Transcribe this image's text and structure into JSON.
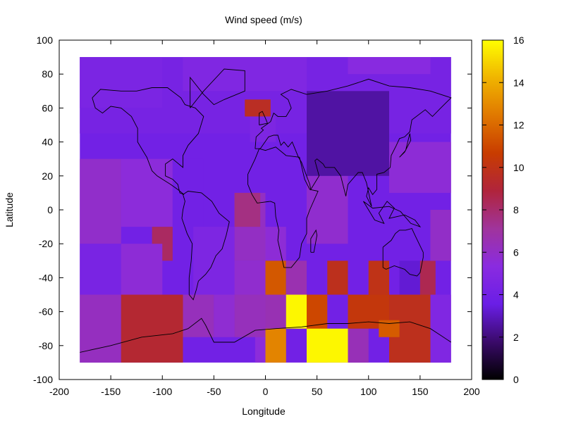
{
  "chart_data": {
    "type": "heatmap",
    "title": "Wind speed (m/s)",
    "xlabel": "Longitude",
    "ylabel": "Latitude",
    "xlim": [
      -200,
      200
    ],
    "ylim": [
      -100,
      100
    ],
    "xticks": [
      -200,
      -150,
      -100,
      -50,
      0,
      50,
      100,
      150,
      200
    ],
    "yticks": [
      -100,
      -80,
      -60,
      -40,
      -20,
      0,
      20,
      40,
      60,
      80,
      100
    ],
    "grid": false,
    "data_extent": {
      "lon": [
        -180,
        180
      ],
      "lat": [
        -90,
        90
      ]
    },
    "colorbar": {
      "min": 0,
      "max": 16,
      "ticks": [
        0,
        2,
        4,
        6,
        8,
        10,
        12,
        14,
        16
      ],
      "colormap": [
        "#000000",
        "#3a0a6a",
        "#6a1ee6",
        "#8a2be0",
        "#a0349c",
        "#b0243c",
        "#c83c00",
        "#e07800",
        "#f0b400",
        "#ffff00"
      ]
    },
    "background_value": 4,
    "regions": [
      {
        "lon": [
          -180,
          180
        ],
        "lat": [
          45,
          90
        ],
        "value": 4.3
      },
      {
        "lon": [
          -180,
          -100
        ],
        "lat": [
          60,
          90
        ],
        "value": 4.5
      },
      {
        "lon": [
          -180,
          -140
        ],
        "lat": [
          -20,
          30
        ],
        "value": 5.9
      },
      {
        "lon": [
          -140,
          -90
        ],
        "lat": [
          -10,
          30
        ],
        "value": 5.5
      },
      {
        "lon": [
          -90,
          -60
        ],
        "lat": [
          -10,
          30
        ],
        "value": 4.0
      },
      {
        "lon": [
          -110,
          -90
        ],
        "lat": [
          -30,
          -10
        ],
        "value": 8.2
      },
      {
        "lon": [
          -180,
          -140
        ],
        "lat": [
          -50,
          -20
        ],
        "value": 4.4
      },
      {
        "lon": [
          -140,
          -100
        ],
        "lat": [
          -50,
          -20
        ],
        "value": 5.6
      },
      {
        "lon": [
          -70,
          -30
        ],
        "lat": [
          -50,
          -10
        ],
        "value": 4.6
      },
      {
        "lon": [
          -30,
          0
        ],
        "lat": [
          -30,
          10
        ],
        "value": 6.1
      },
      {
        "lon": [
          -30,
          -5
        ],
        "lat": [
          -10,
          10
        ],
        "value": 7.6
      },
      {
        "lon": [
          -10,
          0
        ],
        "lat": [
          -90,
          -30
        ],
        "value": 5.5
      },
      {
        "lon": [
          -30,
          0
        ],
        "lat": [
          -60,
          -30
        ],
        "value": 5.8
      },
      {
        "lon": [
          -180,
          -140
        ],
        "lat": [
          -90,
          -50
        ],
        "value": 6.2
      },
      {
        "lon": [
          -140,
          -80
        ],
        "lat": [
          -90,
          -50
        ],
        "value": 9.2
      },
      {
        "lon": [
          -80,
          -50
        ],
        "lat": [
          -75,
          -50
        ],
        "value": 6.3
      },
      {
        "lon": [
          -50,
          -30
        ],
        "lat": [
          -75,
          -50
        ],
        "value": 5.7
      },
      {
        "lon": [
          -30,
          0
        ],
        "lat": [
          -75,
          -50
        ],
        "value": 6.3
      },
      {
        "lon": [
          -20,
          5
        ],
        "lat": [
          55,
          65
        ],
        "value": 9.6
      },
      {
        "lon": [
          -15,
          10
        ],
        "lat": [
          40,
          55
        ],
        "value": 4.6
      },
      {
        "lon": [
          0,
          20
        ],
        "lat": [
          -30,
          -10
        ],
        "value": 5.6
      },
      {
        "lon": [
          0,
          20
        ],
        "lat": [
          -90,
          -50
        ],
        "value": 6.5
      },
      {
        "lon": [
          0,
          20
        ],
        "lat": [
          -50,
          -30
        ],
        "value": 11.5
      },
      {
        "lon": [
          0,
          20
        ],
        "lat": [
          -90,
          -70
        ],
        "value": 12.8
      },
      {
        "lon": [
          20,
          40
        ],
        "lat": [
          -70,
          -50
        ],
        "value": 15.8
      },
      {
        "lon": [
          20,
          40
        ],
        "lat": [
          -50,
          -30
        ],
        "value": 6.6
      },
      {
        "lon": [
          40,
          60
        ],
        "lat": [
          -90,
          -50
        ],
        "value": 11.0
      },
      {
        "lon": [
          40,
          80
        ],
        "lat": [
          -90,
          -70
        ],
        "value": 15.8
      },
      {
        "lon": [
          60,
          80
        ],
        "lat": [
          -50,
          -30
        ],
        "value": 9.8
      },
      {
        "lon": [
          80,
          100
        ],
        "lat": [
          -90,
          -70
        ],
        "value": 6.4
      },
      {
        "lon": [
          80,
          120
        ],
        "lat": [
          -70,
          -50
        ],
        "value": 10.3
      },
      {
        "lon": [
          100,
          120
        ],
        "lat": [
          -50,
          -30
        ],
        "value": 10.0
      },
      {
        "lon": [
          120,
          160
        ],
        "lat": [
          -90,
          -50
        ],
        "value": 9.8
      },
      {
        "lon": [
          110,
          130
        ],
        "lat": [
          -75,
          -65
        ],
        "value": 11.6
      },
      {
        "lon": [
          130,
          150
        ],
        "lat": [
          -50,
          -30
        ],
        "value": 3.3
      },
      {
        "lon": [
          150,
          165
        ],
        "lat": [
          -50,
          -30
        ],
        "value": 8.5
      },
      {
        "lon": [
          160,
          180
        ],
        "lat": [
          -90,
          -50
        ],
        "value": 4.8
      },
      {
        "lon": [
          40,
          80
        ],
        "lat": [
          -20,
          20
        ],
        "value": 5.8
      },
      {
        "lon": [
          120,
          180
        ],
        "lat": [
          10,
          40
        ],
        "value": 5.6
      },
      {
        "lon": [
          160,
          180
        ],
        "lat": [
          -30,
          0
        ],
        "value": 6.0
      },
      {
        "lon": [
          40,
          120
        ],
        "lat": [
          20,
          70
        ],
        "value": 2.6
      },
      {
        "lon": [
          -80,
          40
        ],
        "lat": [
          70,
          90
        ],
        "value": 4.8
      },
      {
        "lon": [
          80,
          160
        ],
        "lat": [
          80,
          90
        ],
        "value": 5.2
      }
    ]
  }
}
